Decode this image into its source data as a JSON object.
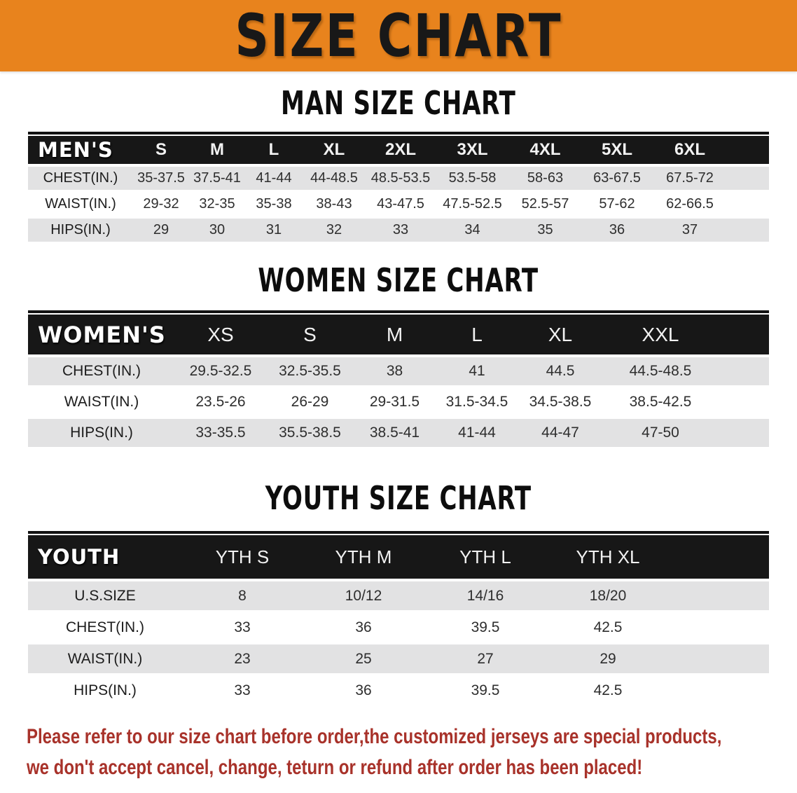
{
  "banner": {
    "title": "SIZE CHART"
  },
  "colors": {
    "banner_bg": "#E8831D",
    "table_header_bg": "#171717",
    "row_gray": "#e2e2e3",
    "notice_text": "#a8322a"
  },
  "sections": {
    "men": {
      "title": "MAN SIZE CHART",
      "table": {
        "header": {
          "label": "MEN'S",
          "sizes": [
            "S",
            "M",
            "L",
            "XL",
            "2XL",
            "3XL",
            "4XL",
            "5XL",
            "6XL"
          ]
        },
        "rows": [
          {
            "label": "CHEST(IN.)",
            "values": [
              "35-37.5",
              "37.5-41",
              "41-44",
              "44-48.5",
              "48.5-53.5",
              "53.5-58",
              "58-63",
              "63-67.5",
              "67.5-72"
            ]
          },
          {
            "label": "WAIST(IN.)",
            "values": [
              "29-32",
              "32-35",
              "35-38",
              "38-43",
              "43-47.5",
              "47.5-52.5",
              "52.5-57",
              "57-62",
              "62-66.5"
            ]
          },
          {
            "label": "HIPS(IN.)",
            "values": [
              "29",
              "30",
              "31",
              "32",
              "33",
              "34",
              "35",
              "36",
              "37"
            ]
          }
        ]
      }
    },
    "women": {
      "title": "WOMEN SIZE CHART",
      "table": {
        "header": {
          "label": "WOMEN'S",
          "sizes": [
            "XS",
            "S",
            "M",
            "L",
            "XL",
            "XXL"
          ]
        },
        "rows": [
          {
            "label": "CHEST(IN.)",
            "values": [
              "29.5-32.5",
              "32.5-35.5",
              "38",
              "41",
              "44.5",
              "44.5-48.5"
            ]
          },
          {
            "label": "WAIST(IN.)",
            "values": [
              "23.5-26",
              "26-29",
              "29-31.5",
              "31.5-34.5",
              "34.5-38.5",
              "38.5-42.5"
            ]
          },
          {
            "label": "HIPS(IN.)",
            "values": [
              "33-35.5",
              "35.5-38.5",
              "38.5-41",
              "41-44",
              "44-47",
              "47-50"
            ]
          }
        ]
      }
    },
    "youth": {
      "title": "YOUTH SIZE CHART",
      "table": {
        "header": {
          "label": "YOUTH",
          "sizes": [
            "YTH S",
            "YTH M",
            "YTH L",
            "YTH XL"
          ]
        },
        "rows": [
          {
            "label": "U.S.SIZE",
            "values": [
              "8",
              "10/12",
              "14/16",
              "18/20"
            ]
          },
          {
            "label": "CHEST(IN.)",
            "values": [
              "33",
              "36",
              "39.5",
              "42.5"
            ]
          },
          {
            "label": "WAIST(IN.)",
            "values": [
              "23",
              "25",
              "27",
              "29"
            ]
          },
          {
            "label": "HIPS(IN.)",
            "values": [
              "33",
              "36",
              "39.5",
              "42.5"
            ]
          }
        ]
      }
    }
  },
  "notice": {
    "line1": "Please refer to our size chart before order,the customized jerseys are special products,",
    "line2": "we don't accept cancel, change, teturn or refund after order has been placed!"
  }
}
